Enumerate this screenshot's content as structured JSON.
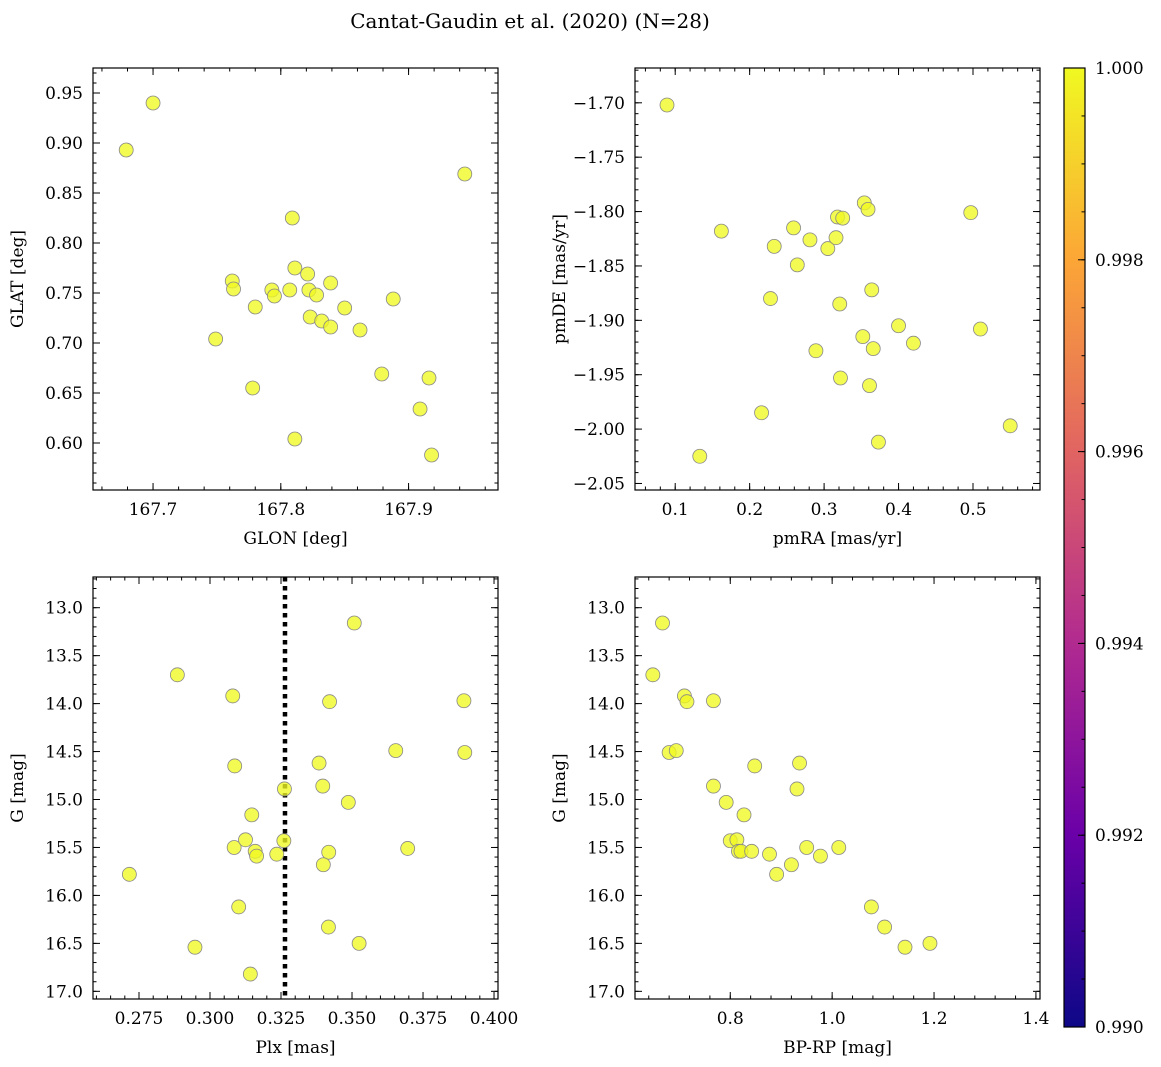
{
  "figure": {
    "title": "Cantat-Gaudin et al. (2020) (N=28)",
    "point_color": "#f0f921",
    "point_edge_color": "#888888"
  },
  "colorbar": {
    "range": [
      0.99,
      1.0
    ],
    "ticks": [
      0.99,
      0.992,
      0.994,
      0.996,
      0.998,
      1.0
    ],
    "tick_labels": [
      "0.990",
      "0.992",
      "0.994",
      "0.996",
      "0.998",
      "1.000"
    ],
    "colormap": "plasma",
    "colormap_stops": [
      "#0d0887",
      "#6a00a8",
      "#b12a90",
      "#e16462",
      "#fca636",
      "#f0f921"
    ]
  },
  "chart_data": [
    {
      "type": "scatter",
      "id": "glon-glat",
      "xlabel": "GLON [deg]",
      "ylabel": "GLAT [deg]",
      "xlim": [
        167.653,
        167.97
      ],
      "ylim": [
        0.553,
        0.975
      ],
      "xticks": [
        167.7,
        167.8,
        167.9
      ],
      "xtick_labels": [
        "167.7",
        "167.8",
        "167.9"
      ],
      "yticks": [
        0.6,
        0.65,
        0.7,
        0.75,
        0.8,
        0.85,
        0.9,
        0.95
      ],
      "ytick_labels": [
        "0.60",
        "0.65",
        "0.70",
        "0.75",
        "0.80",
        "0.85",
        "0.90",
        "0.95"
      ],
      "y_inverted": false,
      "x": [
        167.679,
        167.7,
        167.944,
        167.809,
        167.762,
        167.763,
        167.793,
        167.795,
        167.78,
        167.811,
        167.821,
        167.807,
        167.822,
        167.828,
        167.839,
        167.823,
        167.832,
        167.839,
        167.85,
        167.862,
        167.888,
        167.749,
        167.778,
        167.811,
        167.879,
        167.916,
        167.909,
        167.918
      ],
      "y": [
        0.893,
        0.94,
        0.869,
        0.825,
        0.762,
        0.754,
        0.753,
        0.747,
        0.736,
        0.775,
        0.769,
        0.753,
        0.753,
        0.748,
        0.76,
        0.726,
        0.722,
        0.716,
        0.735,
        0.713,
        0.744,
        0.704,
        0.655,
        0.604,
        0.669,
        0.665,
        0.634,
        0.588
      ]
    },
    {
      "type": "scatter",
      "id": "pmra-pmde",
      "xlabel": "pmRA [mas/yr]",
      "ylabel": "pmDE [mas/yr]",
      "xlim": [
        0.046,
        0.59
      ],
      "ylim": [
        -2.056,
        -1.668
      ],
      "xticks": [
        0.1,
        0.2,
        0.3,
        0.4,
        0.5
      ],
      "xtick_labels": [
        "0.1",
        "0.2",
        "0.3",
        "0.4",
        "0.5"
      ],
      "yticks": [
        -2.05,
        -2.0,
        -1.95,
        -1.9,
        -1.85,
        -1.8,
        -1.75,
        -1.7
      ],
      "ytick_labels": [
        "−2.05",
        "−2.00",
        "−1.95",
        "−1.90",
        "−1.85",
        "−1.80",
        "−1.75",
        "−1.70"
      ],
      "y_inverted": false,
      "x": [
        0.089,
        0.162,
        0.233,
        0.259,
        0.281,
        0.264,
        0.228,
        0.305,
        0.316,
        0.318,
        0.325,
        0.354,
        0.359,
        0.497,
        0.321,
        0.364,
        0.4,
        0.51,
        0.352,
        0.366,
        0.289,
        0.42,
        0.322,
        0.361,
        0.373,
        0.216,
        0.133,
        0.55
      ],
      "y": [
        -1.702,
        -1.818,
        -1.832,
        -1.815,
        -1.826,
        -1.849,
        -1.88,
        -1.834,
        -1.824,
        -1.805,
        -1.806,
        -1.792,
        -1.798,
        -1.801,
        -1.885,
        -1.872,
        -1.905,
        -1.908,
        -1.915,
        -1.926,
        -1.928,
        -1.921,
        -1.953,
        -1.96,
        -2.012,
        -1.985,
        -2.025,
        -1.997
      ]
    },
    {
      "type": "scatter",
      "id": "plx-g",
      "xlabel": "Plx [mas]",
      "ylabel": "G [mag]",
      "xlim": [
        0.2588,
        0.4014
      ],
      "ylim": [
        12.68,
        17.08
      ],
      "xticks": [
        0.275,
        0.3,
        0.325,
        0.35,
        0.375,
        0.4
      ],
      "xtick_labels": [
        "0.275",
        "0.300",
        "0.325",
        "0.350",
        "0.375",
        "0.400"
      ],
      "yticks": [
        13.0,
        13.5,
        14.0,
        14.5,
        15.0,
        15.5,
        16.0,
        16.5,
        17.0
      ],
      "ytick_labels": [
        "13.0",
        "13.5",
        "14.0",
        "14.5",
        "15.0",
        "15.5",
        "16.0",
        "16.5",
        "17.0"
      ],
      "y_inverted": true,
      "vline": 0.3264,
      "x": [
        0.3508,
        0.2885,
        0.308,
        0.3421,
        0.3894,
        0.3654,
        0.3897,
        0.3087,
        0.3384,
        0.3397,
        0.3487,
        0.3262,
        0.3147,
        0.326,
        0.3085,
        0.3125,
        0.3159,
        0.3164,
        0.3418,
        0.3235,
        0.3399,
        0.3696,
        0.2716,
        0.3101,
        0.3417,
        0.2947,
        0.3525,
        0.3142
      ],
      "y": [
        13.16,
        13.7,
        13.92,
        13.98,
        13.97,
        14.49,
        14.51,
        14.65,
        14.62,
        14.86,
        15.03,
        14.89,
        15.16,
        15.43,
        15.5,
        15.42,
        15.54,
        15.59,
        15.55,
        15.57,
        15.68,
        15.51,
        15.78,
        16.12,
        16.33,
        16.54,
        16.5,
        16.82
      ]
    },
    {
      "type": "scatter",
      "id": "bprp-g",
      "xlabel": "BP-RP [mag]",
      "ylabel": "G [mag]",
      "xlim": [
        0.613,
        1.408
      ],
      "ylim": [
        12.68,
        17.08
      ],
      "xticks": [
        0.8,
        1.0,
        1.2,
        1.4
      ],
      "xtick_labels": [
        "0.8",
        "1.0",
        "1.2",
        "1.4"
      ],
      "yticks": [
        13.0,
        13.5,
        14.0,
        14.5,
        15.0,
        15.5,
        16.0,
        16.5,
        17.0
      ],
      "ytick_labels": [
        "13.0",
        "13.5",
        "14.0",
        "14.5",
        "15.0",
        "15.5",
        "16.0",
        "16.5",
        "17.0"
      ],
      "y_inverted": true,
      "x": [
        0.667,
        0.648,
        0.71,
        0.715,
        0.767,
        0.68,
        0.694,
        0.767,
        0.848,
        0.936,
        0.792,
        0.827,
        0.931,
        0.8,
        0.813,
        0.816,
        0.821,
        0.842,
        0.877,
        0.95,
        1.013,
        0.977,
        0.92,
        0.891,
        1.077,
        1.103,
        1.143,
        1.192
      ],
      "y": [
        13.16,
        13.7,
        13.92,
        13.98,
        13.97,
        14.51,
        14.49,
        14.86,
        14.65,
        14.62,
        15.03,
        15.16,
        14.89,
        15.43,
        15.42,
        15.54,
        15.54,
        15.54,
        15.57,
        15.5,
        15.5,
        15.59,
        15.68,
        15.78,
        16.12,
        16.33,
        16.54,
        16.5
      ]
    }
  ]
}
